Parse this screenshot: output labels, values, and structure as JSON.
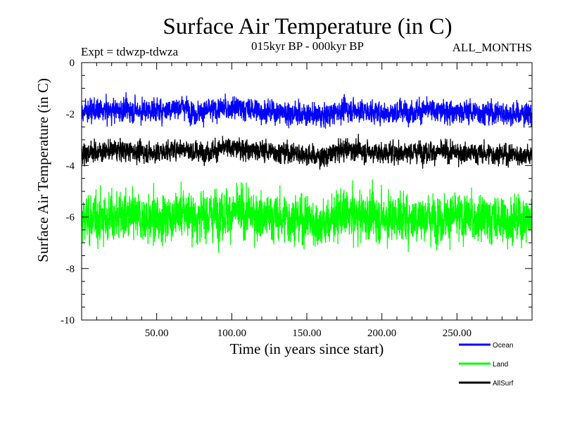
{
  "chart_data": {
    "type": "line",
    "title": "Surface Air Temperature (in C)",
    "subtitle_left": "Expt = tdwzp-tdwza",
    "subtitle_center": "015kyr BP - 000kyr BP",
    "subtitle_right": "ALL_MONTHS",
    "xlabel": "Time (in years since start)",
    "ylabel": "Surface Air Temperature (in C)",
    "xlim": [
      0,
      300
    ],
    "ylim": [
      -10,
      0
    ],
    "x_ticks": [
      50,
      100,
      150,
      200,
      250
    ],
    "x_tick_labels": [
      "50.00",
      "100.00",
      "150.00",
      "200.00",
      "250.00"
    ],
    "y_ticks": [
      0,
      -2,
      -4,
      -6,
      -8,
      -10
    ],
    "y_tick_labels": [
      "0",
      "-2",
      "-4",
      "-6",
      "-8",
      "-10"
    ],
    "grid": false,
    "legend_position": "bottom-right",
    "series": [
      {
        "name": "Ocean",
        "color": "#0000ff",
        "mean": -1.9,
        "range": [
          -2.8,
          -0.8
        ],
        "x": [
          0,
          25,
          50,
          69,
          75,
          100,
          125,
          150,
          160,
          175,
          200,
          225,
          250,
          275,
          298
        ],
        "values": [
          -1.9,
          -1.85,
          -1.85,
          -1.7,
          -1.95,
          -1.75,
          -1.9,
          -2.0,
          -2.1,
          -1.8,
          -1.95,
          -1.85,
          -1.9,
          -1.95,
          -2.0
        ]
      },
      {
        "name": "Land",
        "color": "#00ff00",
        "mean": -6.0,
        "range": [
          -8.2,
          -4.1
        ],
        "x": [
          0,
          25,
          50,
          69,
          75,
          100,
          125,
          150,
          160,
          175,
          200,
          225,
          250,
          275,
          298
        ],
        "values": [
          -6.1,
          -6.0,
          -6.1,
          -5.8,
          -6.0,
          -5.8,
          -6.0,
          -6.1,
          -6.3,
          -5.9,
          -6.0,
          -6.0,
          -6.0,
          -6.1,
          -6.1
        ]
      },
      {
        "name": "AllSurf",
        "color": "#000000",
        "mean": -3.5,
        "range": [
          -4.4,
          -2.6
        ],
        "x": [
          0,
          25,
          50,
          69,
          75,
          100,
          125,
          150,
          160,
          175,
          200,
          225,
          250,
          275,
          298
        ],
        "values": [
          -3.5,
          -3.4,
          -3.5,
          -3.3,
          -3.5,
          -3.3,
          -3.45,
          -3.55,
          -3.7,
          -3.35,
          -3.5,
          -3.45,
          -3.5,
          -3.55,
          -3.6
        ]
      }
    ]
  }
}
